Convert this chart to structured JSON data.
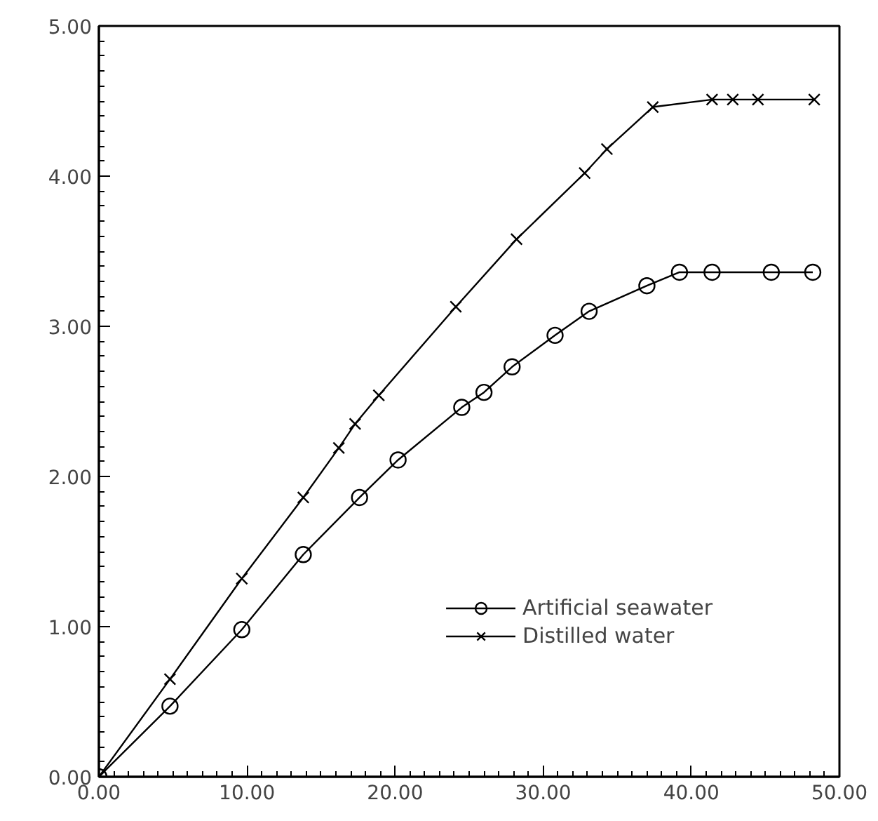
{
  "chart_data": {
    "type": "line",
    "xlim": [
      0,
      50
    ],
    "ylim": [
      0,
      5
    ],
    "xticks": [
      {
        "value": 0,
        "label": "0.00"
      },
      {
        "value": 10,
        "label": "10.00"
      },
      {
        "value": 20,
        "label": "20.00"
      },
      {
        "value": 30,
        "label": "30.00"
      },
      {
        "value": 40,
        "label": "40.00"
      },
      {
        "value": 50,
        "label": "50.00"
      }
    ],
    "yticks": [
      {
        "value": 0,
        "label": "0.00"
      },
      {
        "value": 1,
        "label": "1.00"
      },
      {
        "value": 2,
        "label": "2.00"
      },
      {
        "value": 3,
        "label": "3.00"
      },
      {
        "value": 4,
        "label": "4.00"
      },
      {
        "value": 5,
        "label": "5.00"
      }
    ],
    "grid": false,
    "legend": "bottom right",
    "line_style": "solid",
    "series": [
      {
        "name": "Artificial seawater",
        "color": "#000000",
        "marker": "circle",
        "x": [
          0,
          4.8,
          9.65,
          13.8,
          17.6,
          20.2,
          24.5,
          26.0,
          27.9,
          30.8,
          33.1,
          37.0,
          39.2,
          41.4,
          45.4,
          48.2
        ],
        "values": [
          0,
          0.47,
          0.98,
          1.48,
          1.86,
          2.11,
          2.46,
          2.56,
          2.73,
          2.94,
          3.1,
          3.27,
          3.36,
          3.36,
          3.36,
          3.36
        ]
      },
      {
        "name": "Distilled water",
        "color": "#000000",
        "marker": "cross",
        "x": [
          0,
          4.8,
          9.65,
          13.8,
          16.2,
          17.3,
          18.9,
          24.1,
          28.2,
          32.8,
          34.3,
          37.4,
          41.4,
          42.8,
          44.5,
          48.3
        ],
        "values": [
          0,
          0.65,
          1.32,
          1.86,
          2.19,
          2.35,
          2.54,
          3.13,
          3.58,
          4.02,
          4.18,
          4.46,
          4.51,
          4.51,
          4.51,
          4.51
        ]
      }
    ]
  }
}
